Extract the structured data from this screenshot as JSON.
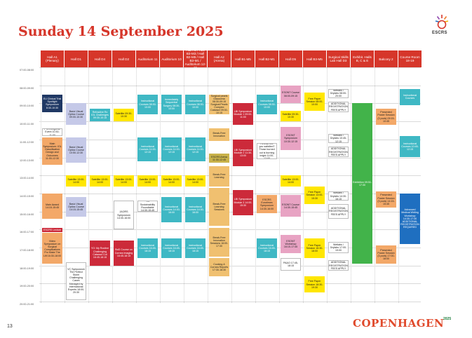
{
  "page": {
    "title": "Sunday 14 September 2025",
    "page_number": "13",
    "logo_text": "ESCRS",
    "footer_brand": "COPENHAGEN",
    "footer_year": "2025"
  },
  "columns": [
    {
      "id": "a1",
      "label": "Hall A1 (Plenary)"
    },
    {
      "id": "d1",
      "label": "Hall D1"
    },
    {
      "id": "d4",
      "label": "Hall D4"
    },
    {
      "id": "d2",
      "label": "Hall D2"
    },
    {
      "id": "aud11",
      "label": "Auditorium 11"
    },
    {
      "id": "aud10",
      "label": "Auditorium 10"
    },
    {
      "id": "a3",
      "label": "Hall A3 / Hall B3-M3 / Hall B2-M5 / Hall B3-M1 / Auditorium 12-15"
    },
    {
      "id": "a2",
      "label": "Hall A2 (Arena)"
    },
    {
      "id": "b1m5",
      "label": "Hall B1-M5"
    },
    {
      "id": "b2m1",
      "label": "Hall B2-M1"
    },
    {
      "id": "d5",
      "label": "Hall D5"
    },
    {
      "id": "b3m5",
      "label": "Hall B3-M5"
    },
    {
      "id": "skills",
      "label": "Surgical Skills Lab Hall D3"
    },
    {
      "id": "exhibit",
      "label": "Exhibit. Halls B, C & E"
    },
    {
      "id": "balcony",
      "label": "Balcony 2"
    },
    {
      "id": "course",
      "label": "Course Room 18-19"
    }
  ],
  "times": [
    "07:00-08:00",
    "08:00-09:00",
    "09:00-10:00",
    "10:00-11:00",
    "11:00-12:00",
    "12:00-13:00",
    "13:00-14:00",
    "14:00-15:00",
    "15:00-16:00",
    "16:00-17:00",
    "17:00-18:00",
    "18:00-19:00",
    "19:00-20:00",
    "20:00-21:00"
  ],
  "colors": {
    "header_red": "#d6362a",
    "header_orange": "#ee7d2b",
    "navy": "#1f3864",
    "lavender": "#c5c9e8",
    "teal": "#3fb8c4",
    "yellow": "#ffe600",
    "tan": "#f0c070",
    "peach": "#f3a868",
    "red": "#cc2a3a",
    "pink": "#e8a3c3",
    "olive": "#c9b24a",
    "green": "#42b34a",
    "blue": "#1f6fc0",
    "grey": "#d9d9d9"
  },
  "events": [
    {
      "col": "a1",
      "start": 8.5,
      "end": 9.5,
      "color": "navy",
      "text": "EU Clinical Trial Spotlight Symposium 8:30-10:30"
    },
    {
      "col": "a1",
      "start": 10.4,
      "end": 10.8,
      "color": "white",
      "text": "Pre-Congress Event 10:30-11:00"
    },
    {
      "col": "a1",
      "start": 10.9,
      "end": 12.4,
      "color": "peach",
      "text": "Main Symposium: IOL Classification Design and Outcomes 11:00-12:30"
    },
    {
      "col": "a1",
      "start": 14.0,
      "end": 15.4,
      "color": "peach",
      "text": "Main Award 14:15-15:45"
    },
    {
      "col": "a1",
      "start": 15.9,
      "end": 16.1,
      "color": "red",
      "text": "ESCRS Lecture"
    },
    {
      "col": "a1",
      "start": 16.2,
      "end": 17.9,
      "color": "peach",
      "text": "Video Symposium on Surgical Complications Pro Make The Lift 16:30-18:00"
    },
    {
      "col": "d1",
      "start": 9.0,
      "end": 10.2,
      "color": "lavender",
      "text": "Basic Visual Optics Course 09:00-10:30"
    },
    {
      "col": "d1",
      "start": 10.9,
      "end": 12.3,
      "color": "lavender",
      "text": "Basic Visual Optics Course 10:50-12:30"
    },
    {
      "col": "d1",
      "start": 13.0,
      "end": 13.6,
      "color": "yellow",
      "text": "Satellite 13:00-14:00"
    },
    {
      "col": "d1",
      "start": 14.2,
      "end": 15.3,
      "color": "lavender",
      "text": "Basic Visual Optics Course 14:15-15:45"
    },
    {
      "col": "d1",
      "start": 17.8,
      "end": 19.9,
      "color": "white",
      "text": "VC Symposium The Perfect Storm Challenging Cases Managed by International Experts 18:00-20:30"
    },
    {
      "col": "d4",
      "start": 9.3,
      "end": 10.0,
      "color": "teal",
      "text": "Refractive Rx IOL Challenges 09:30-10:15"
    },
    {
      "col": "d4",
      "start": 13.0,
      "end": 13.6,
      "color": "yellow",
      "text": "Satellite 13:00-14:00"
    },
    {
      "col": "d4",
      "start": 16.6,
      "end": 18.0,
      "color": "red",
      "text": "YO: My Routine Challenging Cataract Cut 16:45-18:15"
    },
    {
      "col": "d2",
      "start": 9.3,
      "end": 10.0,
      "color": "yellow",
      "text": "Satellite 09:30-10:30"
    },
    {
      "col": "d2",
      "start": 13.0,
      "end": 13.6,
      "color": "yellow",
      "text": "Satellite 13:00-14:00"
    },
    {
      "col": "d2",
      "start": 14.4,
      "end": 16.0,
      "color": "white",
      "text": "JAORS Symposium 14:30-16:00"
    },
    {
      "col": "d2",
      "start": 16.6,
      "end": 18.0,
      "color": "red",
      "text": "BoD Course on Cornea Imaging 16:45-18:15"
    },
    {
      "col": "aud11",
      "start": 8.5,
      "end": 9.6,
      "color": "teal",
      "text": "Instructional Courses 08:30-10:00"
    },
    {
      "col": "aud11",
      "start": 10.9,
      "end": 12.2,
      "color": "teal",
      "text": "Instructional Courses 11:00-12:15"
    },
    {
      "col": "aud11",
      "start": 13.0,
      "end": 13.6,
      "color": "yellow",
      "text": "Satellite 13:00-14:00"
    },
    {
      "col": "aud11",
      "start": 14.4,
      "end": 15.0,
      "color": "white",
      "text": "YO Sustainability Roundtable 14:30-15:45"
    },
    {
      "col": "aud11",
      "start": 16.5,
      "end": 17.6,
      "color": "teal",
      "text": "Instructional Courses 16:45-18:15"
    },
    {
      "col": "aud10",
      "start": 8.5,
      "end": 9.6,
      "color": "teal",
      "text": "Immediately Sequential Surgery 08:30-10:00"
    },
    {
      "col": "aud10",
      "start": 10.9,
      "end": 12.2,
      "color": "teal",
      "text": "Instructional Courses 11:00-12:15"
    },
    {
      "col": "aud10",
      "start": 13.0,
      "end": 13.6,
      "color": "yellow",
      "text": "Satellite 13:00-14:00"
    },
    {
      "col": "aud10",
      "start": 14.2,
      "end": 15.6,
      "color": "teal",
      "text": "Instructional Courses 14:30-16:00"
    },
    {
      "col": "aud10",
      "start": 16.5,
      "end": 17.6,
      "color": "teal",
      "text": "Instructional Courses 16:45-18:15"
    },
    {
      "col": "a3",
      "start": 8.5,
      "end": 9.6,
      "color": "teal",
      "text": "Instructional Courses 08:30-10:00"
    },
    {
      "col": "a3",
      "start": 10.9,
      "end": 12.2,
      "color": "teal",
      "text": "Instructional Courses 11:00-12:15"
    },
    {
      "col": "a3",
      "start": 13.0,
      "end": 13.6,
      "color": "yellow",
      "text": "Satellite 13:00-14:00"
    },
    {
      "col": "a3",
      "start": 14.2,
      "end": 15.6,
      "color": "teal",
      "text": "Instructional Courses 14:30-16:00"
    },
    {
      "col": "a3",
      "start": 16.5,
      "end": 17.6,
      "color": "teal",
      "text": "Instructional Courses 16:45-18:15"
    },
    {
      "col": "a2",
      "start": 8.5,
      "end": 9.0,
      "color": "tan",
      "text": "Surgical pearls Glaucoma 08:30-09:15"
    },
    {
      "col": "a2",
      "start": 9.0,
      "end": 9.6,
      "color": "tan",
      "text": "Surgical Pearls Complex Cataract 09:30-10:15"
    },
    {
      "col": "a2",
      "start": 10.4,
      "end": 11.1,
      "color": "tan",
      "text": "Break-Free Innovation"
    },
    {
      "col": "a2",
      "start": 11.8,
      "end": 12.3,
      "color": "olive",
      "text": "ESCRS Arena 11:30-12:45"
    },
    {
      "col": "a2",
      "start": 12.5,
      "end": 13.6,
      "color": "tan",
      "text": "Break-Free Learning"
    },
    {
      "col": "a2",
      "start": 13.7,
      "end": 15.8,
      "color": "tan",
      "text": "Break-Free Learning Sessions"
    },
    {
      "col": "a2",
      "start": 15.9,
      "end": 17.5,
      "color": "tan",
      "text": "Break-Free Innovation Sessions 16:00-17:30"
    },
    {
      "col": "a2",
      "start": 17.6,
      "end": 18.6,
      "color": "tan",
      "text": "Cooking & Cornea Reports 17:30-18:30"
    },
    {
      "col": "b1m5",
      "start": 9.0,
      "end": 10.2,
      "color": "red",
      "text": "LBI Symposium Module 1 09:00-11:00"
    },
    {
      "col": "b1m5",
      "start": 11.0,
      "end": 12.5,
      "color": "red",
      "text": "LBI Symposium Module 2 11:30-13:00"
    },
    {
      "col": "b1m5",
      "start": 13.8,
      "end": 15.2,
      "color": "red",
      "text": "LBI Symposium Module 3 14:00-15:30"
    },
    {
      "col": "b2m1",
      "start": 8.5,
      "end": 9.6,
      "color": "teal",
      "text": "Instructional Courses 08:30-10:00"
    },
    {
      "col": "b2m1",
      "start": 11.2,
      "end": 12.1,
      "color": "white",
      "text": "Retinal, Are you satisfied? Those burned out is burning bright 11:00-12:00"
    },
    {
      "col": "b2m1",
      "start": 14.1,
      "end": 15.1,
      "color": "peach",
      "text": "ESCRS Eurotimes Symposium 14:30-16:00"
    },
    {
      "col": "b2m1",
      "start": 16.5,
      "end": 17.6,
      "color": "teal",
      "text": "Instructional Courses 16:45-18:15"
    },
    {
      "col": "d5",
      "start": 8.0,
      "end": 9.0,
      "color": "pink",
      "text": "ESONT Course 08:00-09:15"
    },
    {
      "col": "d5",
      "start": 9.4,
      "end": 10.0,
      "color": "yellow",
      "text": "Satellite 09:30-10:30"
    },
    {
      "col": "d5",
      "start": 10.3,
      "end": 11.6,
      "color": "pink",
      "text": "ESONT Symposium 10:30-12:15"
    },
    {
      "col": "d5",
      "start": 13.0,
      "end": 13.6,
      "color": "yellow",
      "text": "Satellite 13:00-14:00"
    },
    {
      "col": "d5",
      "start": 14.1,
      "end": 15.3,
      "color": "pink",
      "text": "ESONT Course 14:30-15:45"
    },
    {
      "col": "d5",
      "start": 16.3,
      "end": 17.3,
      "color": "pink",
      "text": "ESONT Workshop 16:15-17:45"
    },
    {
      "col": "d5",
      "start": 17.6,
      "end": 18.3,
      "color": "white",
      "text": "PAAO 17:45-18:15"
    },
    {
      "col": "b3m5",
      "start": 8.4,
      "end": 9.4,
      "color": "yellow",
      "text": "Free Paper Session 08:00-10:00"
    },
    {
      "col": "b3m5",
      "start": 13.6,
      "end": 14.6,
      "color": "yellow",
      "text": "Free Paper Session 14:00-15:30"
    },
    {
      "col": "b3m5",
      "start": 16.5,
      "end": 17.6,
      "color": "yellow",
      "text": "Free Paper Session 16:30-18:00"
    },
    {
      "col": "b3m5",
      "start": 18.6,
      "end": 19.5,
      "color": "yellow",
      "text": "Free Paper Session 18:30-19:30"
    },
    {
      "col": "skills",
      "start": 8.2,
      "end": 8.7,
      "color": "white",
      "text": "Wetlabs / Drylabs 08:00-20:00"
    },
    {
      "col": "skills",
      "start": 8.9,
      "end": 9.5,
      "color": "white",
      "text": "ADDITIONAL REGISTRATION FEES APPLY"
    },
    {
      "col": "skills",
      "start": 10.7,
      "end": 11.2,
      "color": "white",
      "text": "Wetlabs / Drylabs 10:45-12:15"
    },
    {
      "col": "skills",
      "start": 11.4,
      "end": 12.0,
      "color": "white",
      "text": "ADDITIONAL REGISTRATION FEES APPLY"
    },
    {
      "col": "skills",
      "start": 13.9,
      "end": 14.4,
      "color": "white",
      "text": "Wetlabs / Drylabs 14:30-16:15"
    },
    {
      "col": "skills",
      "start": 14.6,
      "end": 15.4,
      "color": "white",
      "text": "ADDITIONAL REGISTRATION FEES APPLY"
    },
    {
      "col": "skills",
      "start": 16.7,
      "end": 17.3,
      "color": "white",
      "text": "Wetlabs / Drylabs 17:00-19:00"
    },
    {
      "col": "skills",
      "start": 17.7,
      "end": 18.3,
      "color": "white",
      "text": "ADDITIONAL REGISTRATION FEES APPLY"
    },
    {
      "col": "exhibit",
      "start": 9.0,
      "end": 17.9,
      "color": "green",
      "text": "Exhibition 09:30-17:30"
    },
    {
      "col": "balcony",
      "start": 9.3,
      "end": 10.2,
      "color": "peach",
      "text": "Presented Poster Session (3 pods) 09:15-10:45"
    },
    {
      "col": "balcony",
      "start": 13.9,
      "end": 14.8,
      "color": "peach",
      "text": "Presented Poster Session (3 pods) 14:15-15:45"
    },
    {
      "col": "balcony",
      "start": 16.9,
      "end": 17.9,
      "color": "peach",
      "text": "Presented Poster Session (3 pods) 17:00-18:00"
    },
    {
      "col": "course",
      "start": 8.2,
      "end": 9.1,
      "color": "teal",
      "text": "Instructional Courses"
    },
    {
      "col": "course",
      "start": 10.8,
      "end": 12.0,
      "color": "teal",
      "text": "Instructional Courses 10:45-12:15"
    },
    {
      "col": "course",
      "start": 14.0,
      "end": 16.8,
      "color": "blue",
      "text": "Advanced Medical Writing Workshop 14:30-17:30 ADDITIONAL REGISTRATION REQUIRED"
    }
  ]
}
